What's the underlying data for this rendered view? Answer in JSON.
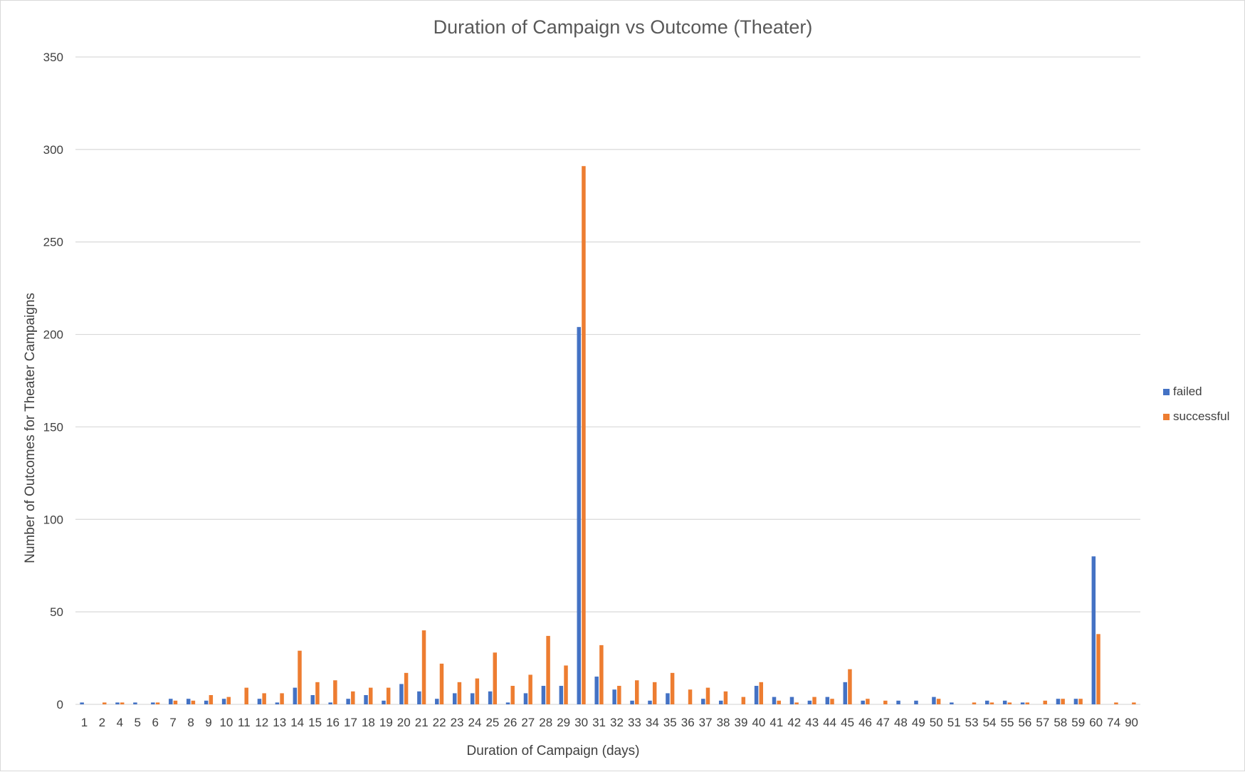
{
  "chart_data": {
    "type": "bar",
    "title": "Duration of Campaign vs Outcome (Theater)",
    "xlabel": "Duration of Campaign (days)",
    "ylabel": "Number of Outcomes for Theater Campaigns",
    "ylim": [
      0,
      350
    ],
    "yticks": [
      0,
      50,
      100,
      150,
      200,
      250,
      300,
      350
    ],
    "grid": true,
    "legend_position": "right",
    "categories": [
      "1",
      "2",
      "4",
      "5",
      "6",
      "7",
      "8",
      "9",
      "10",
      "11",
      "12",
      "13",
      "14",
      "15",
      "16",
      "17",
      "18",
      "19",
      "20",
      "21",
      "22",
      "23",
      "24",
      "25",
      "26",
      "27",
      "28",
      "29",
      "30",
      "31",
      "32",
      "33",
      "34",
      "35",
      "36",
      "37",
      "38",
      "39",
      "40",
      "41",
      "42",
      "43",
      "44",
      "45",
      "46",
      "47",
      "48",
      "49",
      "50",
      "51",
      "53",
      "54",
      "55",
      "56",
      "57",
      "58",
      "59",
      "60",
      "74",
      "90"
    ],
    "series": [
      {
        "name": "failed",
        "color": "#4472C4",
        "values": [
          1,
          0,
          1,
          1,
          1,
          3,
          3,
          2,
          3,
          0,
          3,
          1,
          9,
          5,
          1,
          3,
          5,
          2,
          11,
          7,
          3,
          6,
          6,
          7,
          1,
          6,
          10,
          10,
          204,
          15,
          8,
          2,
          2,
          6,
          0,
          3,
          2,
          0,
          10,
          4,
          4,
          2,
          4,
          12,
          2,
          0,
          2,
          2,
          4,
          1,
          0,
          2,
          2,
          1,
          0,
          3,
          3,
          80,
          0,
          0
        ]
      },
      {
        "name": "successful",
        "color": "#ED7D31",
        "values": [
          0,
          1,
          1,
          0,
          1,
          2,
          2,
          5,
          4,
          9,
          6,
          6,
          29,
          12,
          13,
          7,
          9,
          9,
          17,
          40,
          22,
          12,
          14,
          28,
          10,
          16,
          37,
          21,
          291,
          32,
          10,
          13,
          12,
          17,
          8,
          9,
          7,
          4,
          12,
          2,
          1,
          4,
          3,
          19,
          3,
          2,
          0,
          0,
          3,
          0,
          1,
          1,
          1,
          1,
          2,
          3,
          3,
          38,
          1,
          1
        ]
      }
    ]
  }
}
